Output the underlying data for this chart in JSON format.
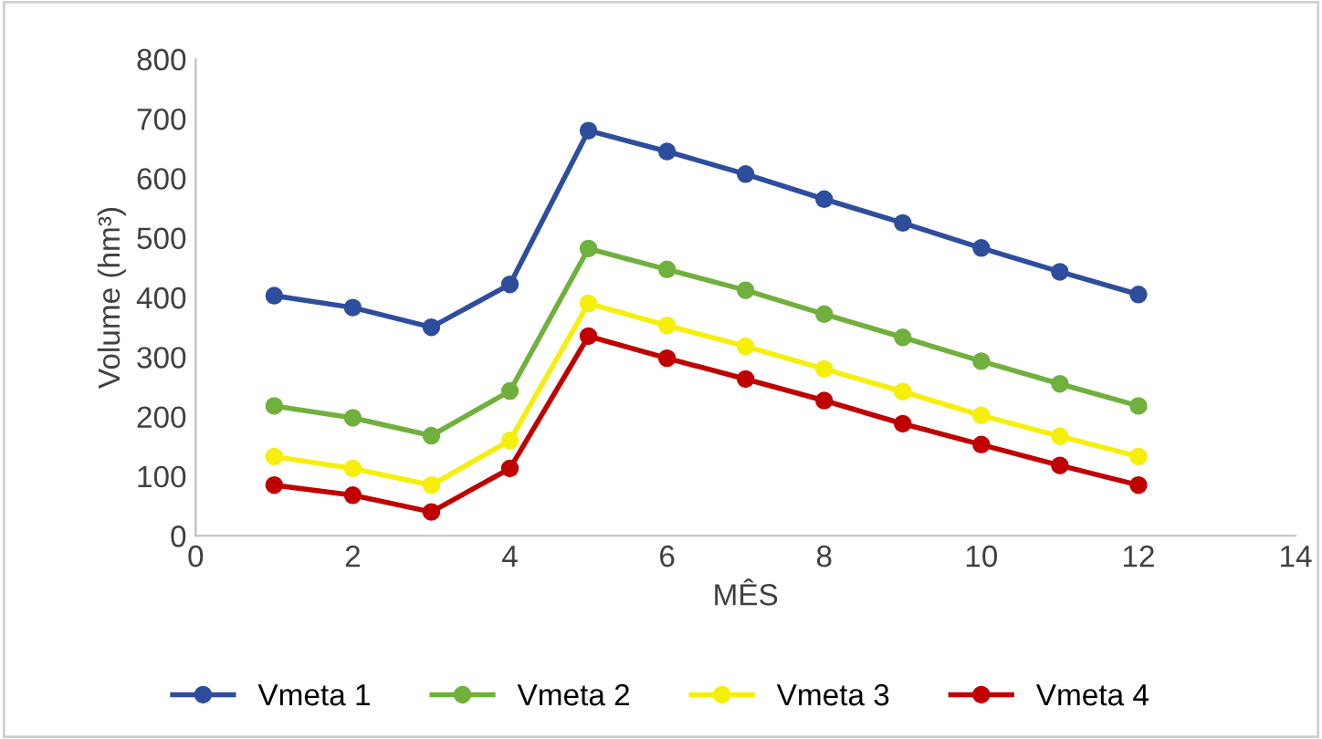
{
  "chart_data": {
    "type": "line",
    "xlabel": "MÊS",
    "ylabel": "Volume (hm³)",
    "x": [
      1,
      2,
      3,
      4,
      5,
      6,
      7,
      8,
      9,
      10,
      11,
      12
    ],
    "series": [
      {
        "name": "Vmeta 1",
        "color": "#2e4d9c",
        "values": [
          403,
          383,
          350,
          422,
          680,
          645,
          607,
          565,
          525,
          483,
          443,
          405
        ]
      },
      {
        "name": "Vmeta 2",
        "color": "#70b03c",
        "values": [
          218,
          198,
          168,
          243,
          482,
          447,
          412,
          372,
          333,
          293,
          255,
          218
        ]
      },
      {
        "name": "Vmeta 3",
        "color": "#f5ef0a",
        "values": [
          133,
          113,
          85,
          160,
          390,
          353,
          318,
          280,
          242,
          202,
          167,
          133
        ]
      },
      {
        "name": "Vmeta 4",
        "color": "#c00000",
        "values": [
          85,
          68,
          40,
          113,
          335,
          298,
          263,
          227,
          188,
          153,
          118,
          85
        ]
      }
    ],
    "xlim": [
      0,
      14
    ],
    "xticks": [
      0,
      2,
      4,
      6,
      8,
      10,
      12,
      14
    ],
    "ylim": [
      0,
      800
    ],
    "yticks": [
      0,
      100,
      200,
      300,
      400,
      500,
      600,
      700,
      800
    ],
    "legend": "bottom",
    "marker": "circle",
    "line_style": "solid",
    "grid": false
  }
}
